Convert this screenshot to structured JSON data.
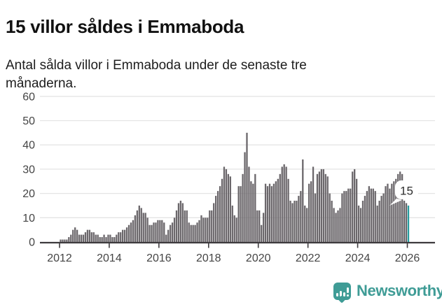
{
  "header": {
    "title": "15 villor såldes i Emmaboda",
    "subtitle": "Antal sålda villor i Emmaboda under de senaste tre månaderna."
  },
  "chart_data": {
    "type": "bar",
    "title": "15 villor såldes i Emmaboda",
    "subtitle": "Antal sålda villor i Emmaboda under de senaste tre månaderna.",
    "xlabel": "",
    "ylabel": "",
    "ylim": [
      0,
      60
    ],
    "yticks": [
      0,
      10,
      20,
      30,
      40,
      50,
      60
    ],
    "xticks": [
      2012,
      2014,
      2016,
      2018,
      2020,
      2022,
      2024,
      2026
    ],
    "frequency": "monthly",
    "start": "2012-01",
    "end": "2026-01",
    "grid": true,
    "legend": false,
    "highlight": {
      "position": "last",
      "label": "15",
      "value": 15
    },
    "values": [
      1,
      1,
      1,
      1,
      2,
      3,
      5,
      6,
      5,
      3,
      3,
      3,
      4,
      5,
      5,
      4,
      4,
      3,
      3,
      2,
      2,
      3,
      2,
      3,
      3,
      2,
      2,
      3,
      4,
      4,
      5,
      5,
      6,
      7,
      8,
      9,
      11,
      13,
      15,
      14,
      12,
      12,
      10,
      7,
      7,
      8,
      8,
      9,
      9,
      9,
      8,
      3,
      5,
      7,
      8,
      10,
      13,
      16,
      17,
      16,
      13,
      13,
      8,
      7,
      7,
      7,
      8,
      9,
      11,
      10,
      10,
      10,
      13,
      13,
      16,
      19,
      21,
      23,
      26,
      31,
      30,
      28,
      27,
      15,
      11,
      10,
      23,
      23,
      28,
      37,
      45,
      31,
      25,
      24,
      28,
      13,
      13,
      7,
      12,
      24,
      23,
      24,
      23,
      24,
      25,
      26,
      28,
      31,
      32,
      31,
      26,
      17,
      16,
      17,
      17,
      19,
      21,
      34,
      15,
      14,
      24,
      25,
      31,
      20,
      28,
      29,
      30,
      30,
      28,
      27,
      20,
      17,
      14,
      12,
      13,
      14,
      20,
      21,
      21,
      22,
      22,
      29,
      30,
      26,
      15,
      14,
      17,
      19,
      21,
      23,
      22,
      22,
      21,
      15,
      17,
      19,
      20,
      23,
      24,
      22,
      24,
      25,
      26,
      28,
      29,
      28,
      17,
      16,
      15
    ]
  },
  "footer": {
    "brand": "Newsworthy"
  },
  "colors": {
    "background": "#ffffff",
    "bar": "#6b676b",
    "accent": "#289ea0",
    "grid": "#e4e4e4",
    "axis": "#3e3b3e",
    "tick_label": "#454545",
    "title": "#111111",
    "subtitle": "#1d1d1d",
    "callout_bg": "#ffffff",
    "callout_text": "#2e2e2e",
    "logo": "#3f9c96"
  }
}
